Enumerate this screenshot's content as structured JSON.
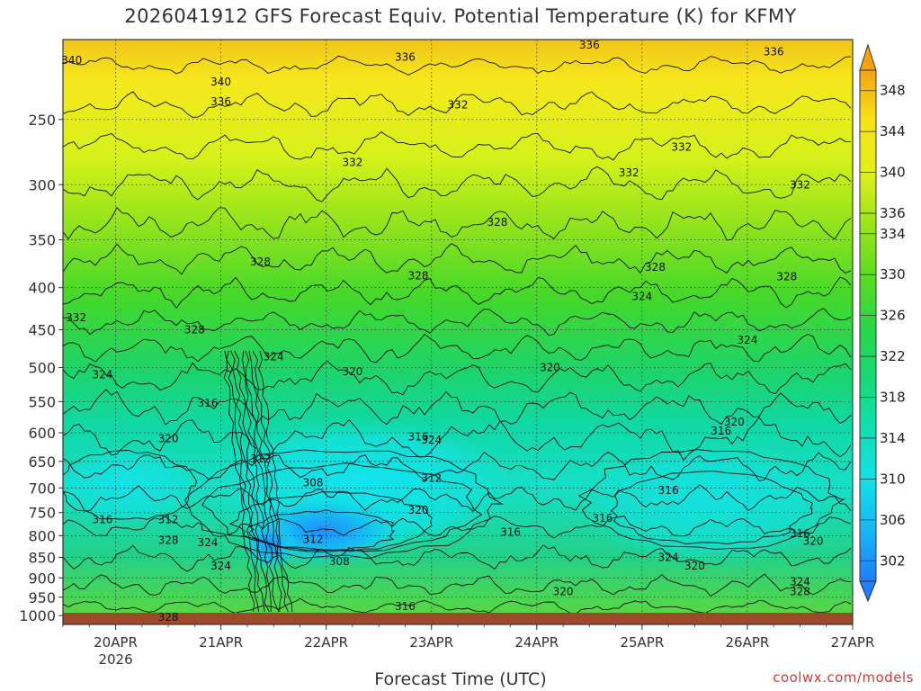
{
  "chart_data": {
    "type": "heatmap",
    "title": "2026041912 GFS Forecast Equiv. Potential Temperature (K) for KFMY",
    "xlabel": "Forecast Time (UTC)",
    "ylabel": "",
    "y_scale": "log",
    "y_reversed": true,
    "y_ticks": [
      250,
      300,
      350,
      400,
      450,
      500,
      550,
      600,
      650,
      700,
      750,
      800,
      850,
      900,
      950,
      1000
    ],
    "y_range": [
      200,
      1025
    ],
    "x_ticks": [
      "20APR",
      "21APR",
      "22APR",
      "23APR",
      "24APR",
      "25APR",
      "26APR",
      "27APR"
    ],
    "x_tick_sublabel": "2026",
    "x_range": [
      "2026-04-19 12Z",
      "2026-04-27 00Z"
    ],
    "grid": true,
    "colorbar": {
      "levels": [
        302,
        306,
        310,
        314,
        318,
        322,
        326,
        330,
        334,
        336,
        340,
        344,
        348
      ],
      "range": [
        300,
        350
      ]
    },
    "contour_labels": [
      {
        "text": "340",
        "x": "2026-04-19 14Z",
        "p": 212
      },
      {
        "text": "340",
        "x": "2026-04-21 00Z",
        "p": 225
      },
      {
        "text": "336",
        "x": "2026-04-21 00Z",
        "p": 238
      },
      {
        "text": "336",
        "x": "2026-04-22 18Z",
        "p": 210
      },
      {
        "text": "336",
        "x": "2026-04-24 12Z",
        "p": 203
      },
      {
        "text": "336",
        "x": "2026-04-26 06Z",
        "p": 207
      },
      {
        "text": "332",
        "x": "2026-04-23 06Z",
        "p": 240
      },
      {
        "text": "332",
        "x": "2026-04-22 06Z",
        "p": 282
      },
      {
        "text": "332",
        "x": "2026-04-25 09Z",
        "p": 270
      },
      {
        "text": "332",
        "x": "2026-04-24 21Z",
        "p": 290
      },
      {
        "text": "332",
        "x": "2026-04-26 12Z",
        "p": 300
      },
      {
        "text": "332",
        "x": "2026-04-19 15Z",
        "p": 435
      },
      {
        "text": "328",
        "x": "2026-04-23 15Z",
        "p": 333
      },
      {
        "text": "328",
        "x": "2026-04-21 09Z",
        "p": 372
      },
      {
        "text": "328",
        "x": "2026-04-22 21Z",
        "p": 387
      },
      {
        "text": "328",
        "x": "2026-04-25 03Z",
        "p": 378
      },
      {
        "text": "328",
        "x": "2026-04-26 09Z",
        "p": 388
      },
      {
        "text": "328",
        "x": "2026-04-20 18Z",
        "p": 450
      },
      {
        "text": "324",
        "x": "2026-04-25 00Z",
        "p": 410
      },
      {
        "text": "324",
        "x": "2026-04-26 00Z",
        "p": 463
      },
      {
        "text": "324",
        "x": "2026-04-21 12Z",
        "p": 485
      },
      {
        "text": "324",
        "x": "2026-04-19 21Z",
        "p": 510
      },
      {
        "text": "320",
        "x": "2026-04-22 06Z",
        "p": 506
      },
      {
        "text": "320",
        "x": "2026-04-24 03Z",
        "p": 500
      },
      {
        "text": "320",
        "x": "2026-04-20 12Z",
        "p": 610
      },
      {
        "text": "320",
        "x": "2026-04-25 21Z",
        "p": 582
      },
      {
        "text": "316",
        "x": "2026-04-20 21Z",
        "p": 552
      },
      {
        "text": "316",
        "x": "2026-04-22 21Z",
        "p": 607
      },
      {
        "text": "316",
        "x": "2026-04-25 18Z",
        "p": 597
      },
      {
        "text": "316",
        "x": "2026-04-25 06Z",
        "p": 705
      },
      {
        "text": "316",
        "x": "2026-04-24 15Z",
        "p": 762
      },
      {
        "text": "316",
        "x": "2026-04-23 18Z",
        "p": 792
      },
      {
        "text": "316",
        "x": "2026-04-19 21Z",
        "p": 765
      },
      {
        "text": "316",
        "x": "2026-04-26 12Z",
        "p": 795
      },
      {
        "text": "316",
        "x": "2026-04-22 18Z",
        "p": 975
      },
      {
        "text": "324",
        "x": "2026-04-23 00Z",
        "p": 612
      },
      {
        "text": "312",
        "x": "2026-04-21 09Z",
        "p": 645
      },
      {
        "text": "312",
        "x": "2026-04-23 00Z",
        "p": 681
      },
      {
        "text": "312",
        "x": "2026-04-20 12Z",
        "p": 765
      },
      {
        "text": "312",
        "x": "2026-04-21 21Z",
        "p": 808
      },
      {
        "text": "308",
        "x": "2026-04-21 21Z",
        "p": 690
      },
      {
        "text": "308",
        "x": "2026-04-22 03Z",
        "p": 860
      },
      {
        "text": "320",
        "x": "2026-04-22 21Z",
        "p": 745
      },
      {
        "text": "320",
        "x": "2026-04-24 06Z",
        "p": 935
      },
      {
        "text": "320",
        "x": "2026-04-26 15Z",
        "p": 812
      },
      {
        "text": "320",
        "x": "2026-04-25 12Z",
        "p": 870
      },
      {
        "text": "324",
        "x": "2026-04-25 06Z",
        "p": 850
      },
      {
        "text": "324",
        "x": "2026-04-21 00Z",
        "p": 870
      },
      {
        "text": "324",
        "x": "2026-04-20 21Z",
        "p": 815
      },
      {
        "text": "324",
        "x": "2026-04-26 12Z",
        "p": 910
      },
      {
        "text": "328",
        "x": "2026-04-20 12Z",
        "p": 810
      },
      {
        "text": "328",
        "x": "2026-04-20 12Z",
        "p": 1005
      },
      {
        "text": "328",
        "x": "2026-04-26 12Z",
        "p": 935
      }
    ]
  },
  "credit": "coolwx.com/models",
  "colors": {
    "ground": "#9b4a2a",
    "contour": "#111111"
  }
}
